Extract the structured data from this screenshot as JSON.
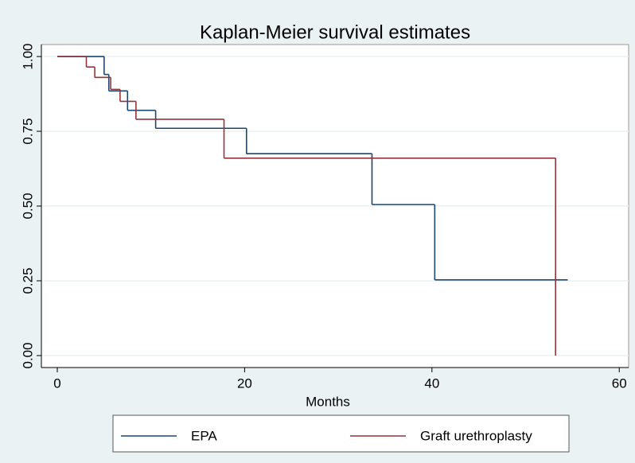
{
  "chart_data": {
    "type": "step-line",
    "title": "Kaplan-Meier survival estimates",
    "x_label": "Months",
    "xlim": [
      -1.7,
      61
    ],
    "xticks": [
      0,
      20,
      40,
      60
    ],
    "ylim": [
      -0.04,
      1.04
    ],
    "yticks": [
      {
        "value": 0,
        "label": "0.00"
      },
      {
        "value": 0.25,
        "label": "0.25"
      },
      {
        "value": 0.5,
        "label": "0.50"
      },
      {
        "value": 0.75,
        "label": "0.75"
      },
      {
        "value": 1,
        "label": "1.00"
      }
    ],
    "grid": true,
    "series": [
      {
        "name": "EPA",
        "color": "#1a476f",
        "x": [
          0,
          5.0,
          5.5,
          7.5,
          10.5,
          20.2,
          33.6,
          40.3,
          54.5
        ],
        "values": [
          1,
          0.94,
          0.885,
          0.82,
          0.76,
          0.675,
          0.505,
          0.253,
          0.253
        ]
      },
      {
        "name": "Graft urethroplasty",
        "color": "#90353b",
        "x": [
          0,
          3.1,
          4.0,
          5.7,
          6.7,
          8.4,
          17.8,
          53.2
        ],
        "values": [
          1,
          0.965,
          0.93,
          0.89,
          0.85,
          0.79,
          0.66,
          0
        ]
      }
    ]
  }
}
